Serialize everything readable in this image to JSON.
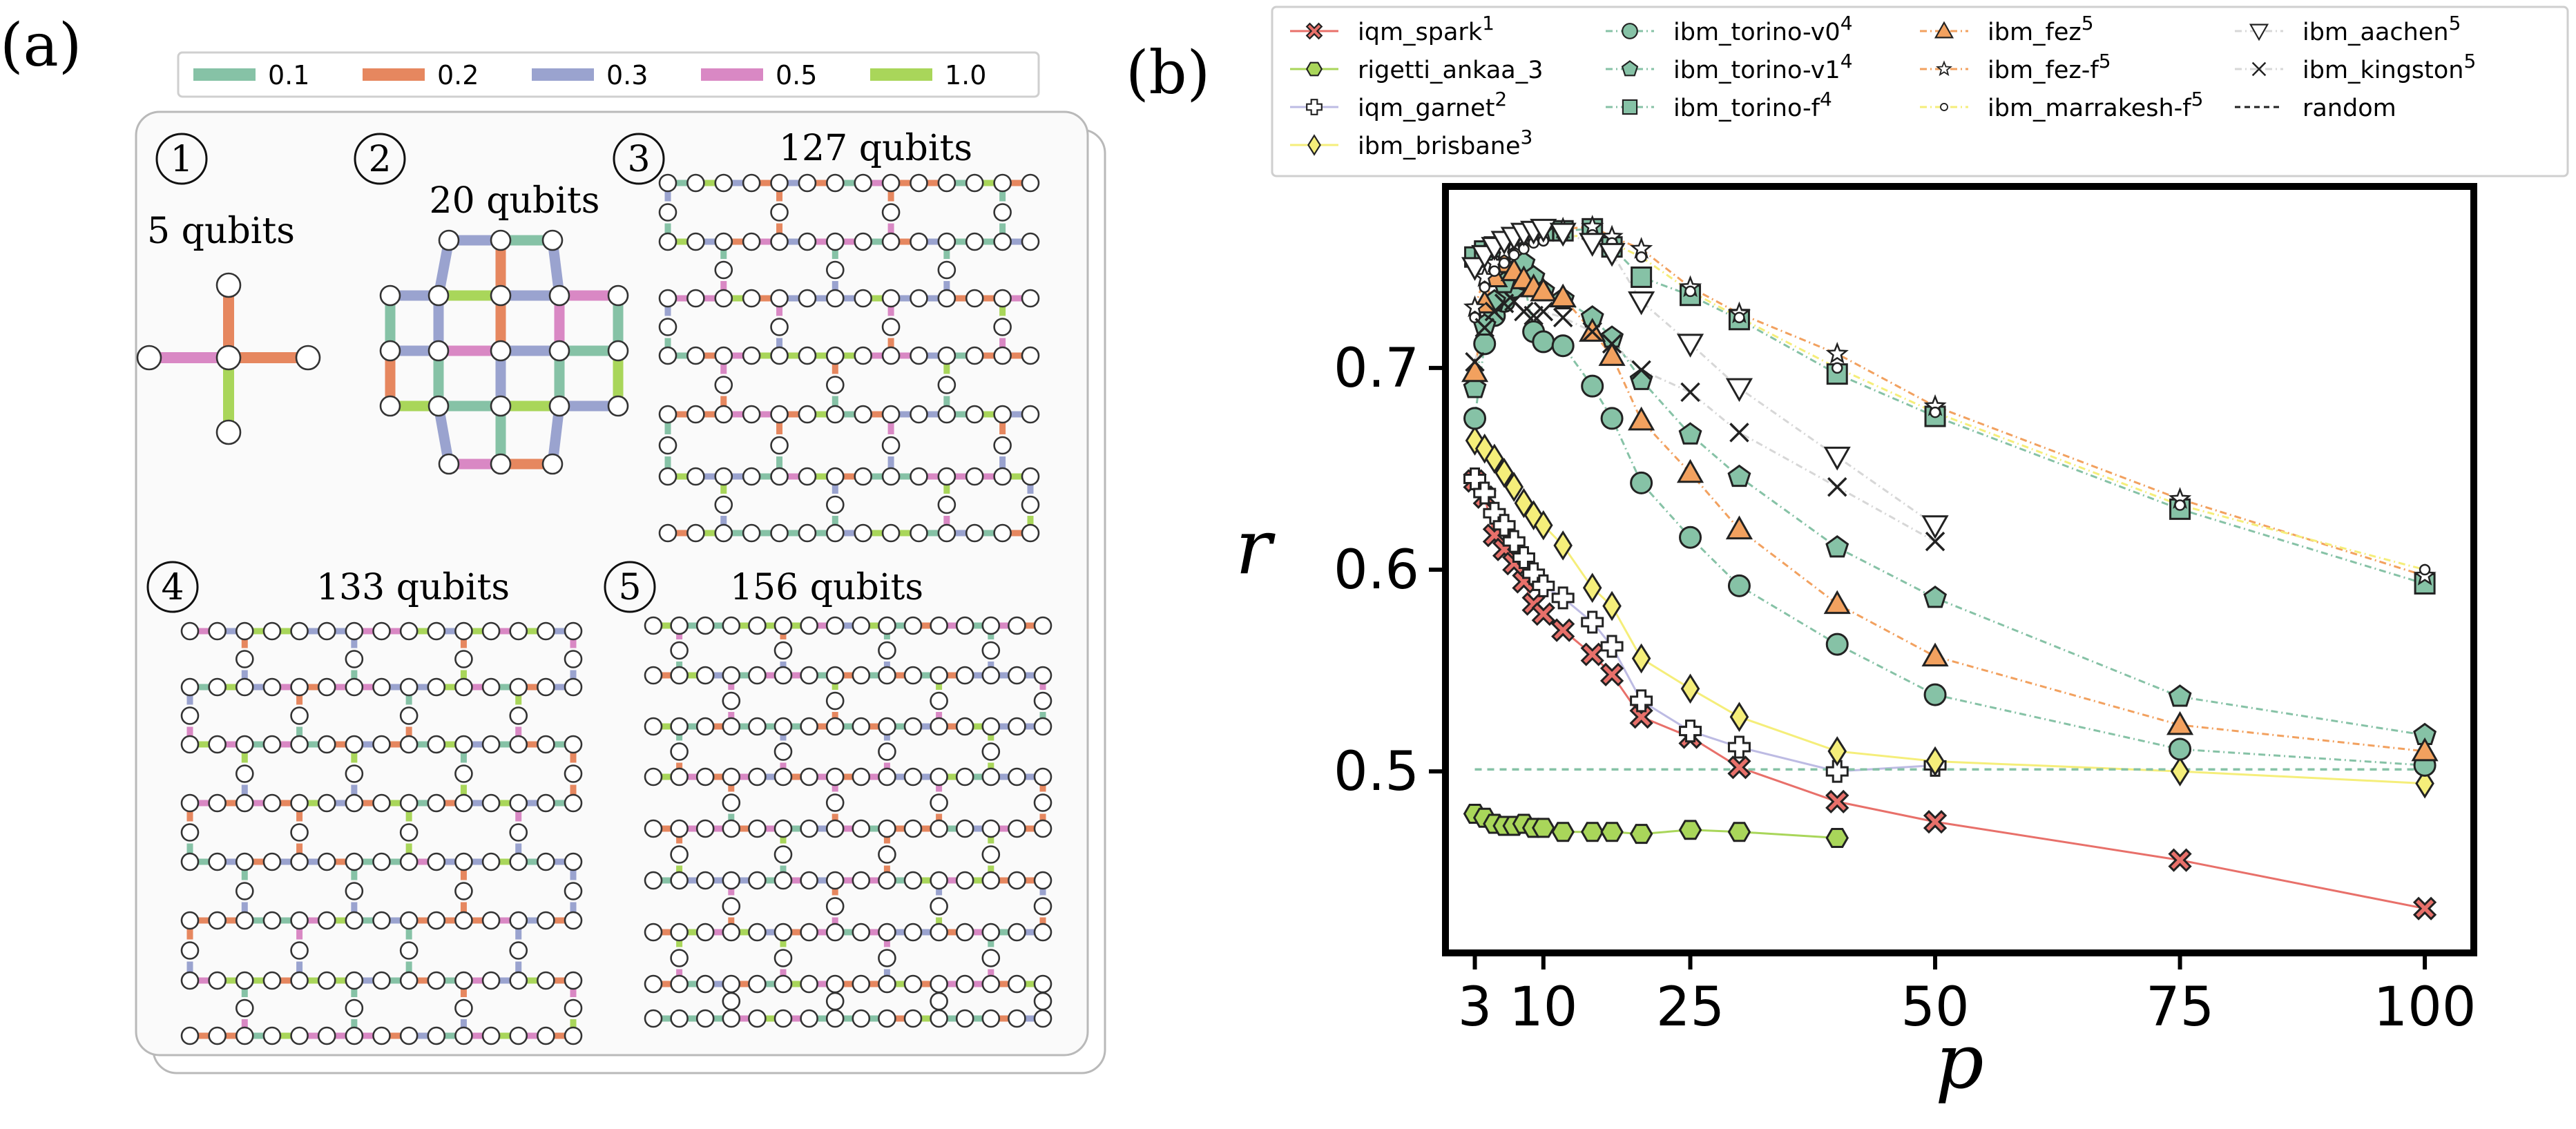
{
  "panel_a": {
    "label": "(a)",
    "weight_legend": [
      {
        "label": "0.1",
        "color": "#86c2a6"
      },
      {
        "label": "0.2",
        "color": "#e6875f"
      },
      {
        "label": "0.3",
        "color": "#9aa3cf"
      },
      {
        "label": "0.5",
        "color": "#d988c4"
      },
      {
        "label": "1.0",
        "color": "#a9d65a"
      }
    ],
    "devices": [
      {
        "num": "1",
        "title": "5 qubits"
      },
      {
        "num": "2",
        "title": "20 qubits"
      },
      {
        "num": "3",
        "title": "127 qubits"
      },
      {
        "num": "4",
        "title": "133 qubits"
      },
      {
        "num": "5",
        "title": "156 qubits"
      }
    ]
  },
  "panel_b": {
    "label": "(b)"
  },
  "chart_data": {
    "type": "line",
    "xlabel": "p",
    "ylabel": "r",
    "xlim": [
      0,
      105
    ],
    "ylim": [
      0.41,
      0.79
    ],
    "xticks": [
      {
        "value": 3,
        "label": "3"
      },
      {
        "value": 10,
        "label": "10"
      },
      {
        "value": 25,
        "label": "25"
      },
      {
        "value": 50,
        "label": "50"
      },
      {
        "value": 75,
        "label": "75"
      },
      {
        "value": 100,
        "label": "100"
      }
    ],
    "yticks": [
      {
        "value": 0.5,
        "label": "0.5"
      },
      {
        "value": 0.6,
        "label": "0.6"
      },
      {
        "value": 0.7,
        "label": "0.7"
      }
    ],
    "legend_position": "top",
    "series": [
      {
        "name": "iqm_spark",
        "sup": "1",
        "color": "#e8706a",
        "marker": "xfill",
        "dash": "",
        "x": [
          3,
          4,
          5,
          6,
          7,
          8,
          9,
          10,
          12,
          15,
          17,
          20,
          25,
          30,
          40,
          50,
          75,
          100
        ],
        "y": [
          0.644,
          0.636,
          0.617,
          0.61,
          0.603,
          0.594,
          0.583,
          0.578,
          0.57,
          0.558,
          0.548,
          0.527,
          0.517,
          0.502,
          0.485,
          0.475,
          0.456,
          0.432
        ]
      },
      {
        "name": "rigetti_ankaa_3",
        "sup": "",
        "color": "#a9d65a",
        "marker": "hexagon",
        "dash": "",
        "x": [
          3,
          4,
          5,
          6,
          7,
          8,
          9,
          10,
          12,
          15,
          17,
          20,
          25,
          30,
          40
        ],
        "y": [
          0.479,
          0.477,
          0.474,
          0.473,
          0.473,
          0.474,
          0.472,
          0.472,
          0.47,
          0.47,
          0.47,
          0.469,
          0.471,
          0.47,
          0.467
        ]
      },
      {
        "name": "iqm_garnet",
        "sup": "2",
        "color": "#bdbbe3",
        "marker": "plus",
        "dash": "",
        "x": [
          3,
          4,
          5,
          6,
          7,
          8,
          9,
          10,
          12,
          15,
          17,
          20,
          25,
          30,
          40,
          50
        ],
        "y": [
          0.645,
          0.638,
          0.628,
          0.622,
          0.614,
          0.606,
          0.598,
          0.592,
          0.586,
          0.574,
          0.562,
          0.535,
          0.52,
          0.512,
          0.5,
          0.503
        ]
      },
      {
        "name": "ibm_brisbane",
        "sup": "3",
        "color": "#f5ee7a",
        "marker": "diamond",
        "dash": "",
        "x": [
          3,
          4,
          5,
          6,
          7,
          8,
          9,
          10,
          12,
          15,
          17,
          20,
          25,
          30,
          40,
          50,
          75,
          100
        ],
        "y": [
          0.664,
          0.66,
          0.655,
          0.648,
          0.641,
          0.633,
          0.627,
          0.622,
          0.612,
          0.591,
          0.582,
          0.556,
          0.541,
          0.527,
          0.51,
          0.505,
          0.5,
          0.494
        ]
      },
      {
        "name": "ibm_torino-v0",
        "sup": "4",
        "color": "#86c2a6",
        "marker": "circle",
        "dash": "10 5 2 5",
        "x": [
          3,
          4,
          5,
          6,
          7,
          8,
          9,
          10,
          12,
          15,
          17,
          20,
          25,
          30,
          40,
          50,
          75,
          100
        ],
        "y": [
          0.675,
          0.712,
          0.726,
          0.733,
          0.74,
          0.744,
          0.718,
          0.713,
          0.711,
          0.691,
          0.675,
          0.643,
          0.616,
          0.592,
          0.563,
          0.538,
          0.511,
          0.503
        ]
      },
      {
        "name": "ibm_torino-v1",
        "sup": "4",
        "color": "#86c2a6",
        "marker": "pentagon",
        "dash": "10 5 2 5",
        "x": [
          3,
          4,
          5,
          6,
          7,
          8,
          9,
          10,
          12,
          15,
          17,
          20,
          25,
          30,
          40,
          50,
          75,
          100
        ],
        "y": [
          0.69,
          0.721,
          0.733,
          0.742,
          0.748,
          0.752,
          0.745,
          0.738,
          0.734,
          0.725,
          0.715,
          0.694,
          0.667,
          0.646,
          0.611,
          0.586,
          0.537,
          0.518
        ]
      },
      {
        "name": "ibm_torino-f",
        "sup": "4",
        "color": "#86c2a6",
        "marker": "square",
        "dash": "10 5 2 5",
        "x": [
          3,
          4,
          5,
          6,
          7,
          8,
          9,
          10,
          12,
          15,
          17,
          20,
          25,
          30,
          40,
          50,
          75,
          100
        ],
        "y": [
          0.755,
          0.758,
          0.76,
          0.762,
          0.764,
          0.766,
          0.767,
          0.768,
          0.768,
          0.769,
          0.76,
          0.745,
          0.736,
          0.724,
          0.697,
          0.676,
          0.63,
          0.593
        ]
      },
      {
        "name": "ibm_fez",
        "sup": "5",
        "color": "#f2a15f",
        "marker": "triangle",
        "dash": "10 5 2 5",
        "x": [
          3,
          4,
          5,
          6,
          7,
          8,
          9,
          10,
          12,
          15,
          17,
          20,
          25,
          30,
          40,
          50,
          75,
          100
        ],
        "y": [
          0.698,
          0.732,
          0.745,
          0.752,
          0.748,
          0.744,
          0.74,
          0.738,
          0.735,
          0.718,
          0.706,
          0.674,
          0.648,
          0.62,
          0.583,
          0.557,
          0.523,
          0.51
        ]
      },
      {
        "name": "ibm_fez-f",
        "sup": "5",
        "color": "#f2a15f",
        "marker": "star",
        "dash": "10 5 2 5",
        "x": [
          3,
          4,
          5,
          6,
          7,
          8,
          9,
          10,
          12,
          15,
          17,
          20,
          25,
          30,
          40,
          50,
          75,
          100
        ],
        "y": [
          0.73,
          0.745,
          0.752,
          0.758,
          0.762,
          0.765,
          0.767,
          0.768,
          0.769,
          0.77,
          0.765,
          0.759,
          0.74,
          0.727,
          0.707,
          0.681,
          0.635,
          0.597
        ]
      },
      {
        "name": "ibm_marrakesh-f",
        "sup": "5",
        "color": "#f5ee7a",
        "marker": "smallcircle",
        "dash": "10 5 2 5",
        "x": [
          3,
          4,
          5,
          6,
          7,
          8,
          9,
          10,
          12,
          15,
          17,
          20,
          25,
          30,
          40,
          50,
          75,
          100
        ],
        "y": [
          0.725,
          0.74,
          0.748,
          0.752,
          0.756,
          0.759,
          0.762,
          0.763,
          0.765,
          0.766,
          0.762,
          0.755,
          0.738,
          0.725,
          0.7,
          0.678,
          0.632,
          0.6
        ]
      },
      {
        "name": "ibm_aachen",
        "sup": "5",
        "color": "#d7d7d7",
        "marker": "tridown",
        "dash": "10 5 2 5",
        "x": [
          3,
          4,
          5,
          6,
          7,
          8,
          9,
          10,
          12,
          15,
          17,
          20,
          25,
          30,
          40,
          50
        ],
        "y": [
          0.75,
          0.756,
          0.76,
          0.763,
          0.765,
          0.767,
          0.768,
          0.769,
          0.767,
          0.762,
          0.757,
          0.733,
          0.712,
          0.69,
          0.656,
          0.622
        ]
      },
      {
        "name": "ibm_kingston",
        "sup": "5",
        "color": "#d7d7d7",
        "marker": "x",
        "dash": "10 5 2 5",
        "x": [
          3,
          4,
          5,
          6,
          7,
          8,
          9,
          10,
          12,
          15,
          17,
          20,
          25,
          30,
          40,
          50
        ],
        "y": [
          0.703,
          0.72,
          0.728,
          0.732,
          0.733,
          0.728,
          0.726,
          0.728,
          0.725,
          0.718,
          0.712,
          0.699,
          0.688,
          0.668,
          0.641,
          0.614
        ]
      },
      {
        "name": "random",
        "sup": "",
        "color": "#86c2a6",
        "marker": "none",
        "dash": "10 8",
        "x": [
          3,
          100
        ],
        "y": [
          0.501,
          0.501
        ]
      }
    ]
  }
}
